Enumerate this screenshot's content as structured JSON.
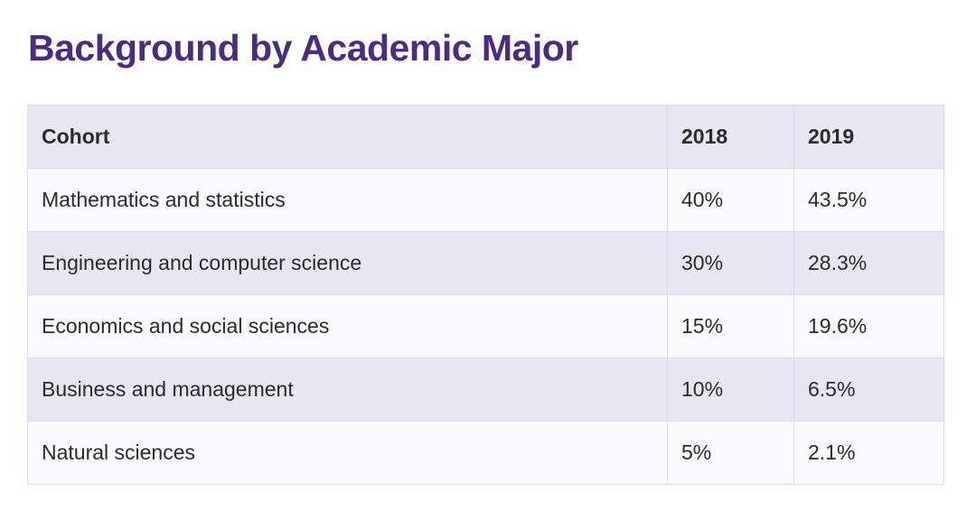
{
  "title": "Background by Academic Major",
  "headers": [
    "Cohort",
    "2018",
    "2019"
  ],
  "rows": [
    [
      "Mathematics and statistics",
      "40%",
      "43.5%"
    ],
    [
      "Engineering and computer science",
      "30%",
      "28.3%"
    ],
    [
      "Economics and social sciences",
      "15%",
      "19.6%"
    ],
    [
      "Business and management",
      "10%",
      "6.5%"
    ],
    [
      "Natural sciences",
      "5%",
      "2.1%"
    ]
  ],
  "colors": {
    "title": "#4a2d80",
    "header_bg": "#e8e6f1",
    "row_alt_bg": "#faf9fd"
  }
}
